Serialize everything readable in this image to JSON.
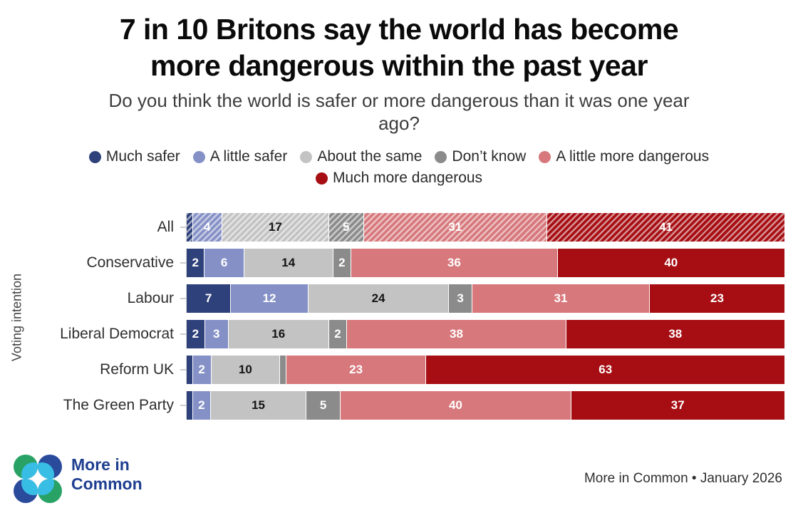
{
  "page": {
    "title_lines": [
      "7 in 10 Britons say the world has become",
      "more dangerous within the past year"
    ],
    "subtitle_lines": [
      "Do you think the world is safer or more dangerous than it was one year",
      "ago?"
    ]
  },
  "chart_data": {
    "type": "bar",
    "orientation": "horizontal",
    "stacked": true,
    "unit": "%",
    "xlim": [
      0,
      100
    ],
    "grid": false,
    "legend_position": "top",
    "ylabel": "Voting intention",
    "categories": [
      "All",
      "Conservative",
      "Labour",
      "Liberal Democrat",
      "Reform UK",
      "The Green Party"
    ],
    "series": [
      {
        "name": "Much safer",
        "color": "#2F417B",
        "values": [
          1,
          2,
          7,
          2,
          1,
          1
        ]
      },
      {
        "name": "A little safer",
        "color": "#8591C6",
        "values": [
          4,
          6,
          12,
          3,
          2,
          2
        ]
      },
      {
        "name": "About the same",
        "color": "#C3C3C3",
        "values": [
          17,
          14,
          24,
          16,
          10,
          15
        ]
      },
      {
        "name": "Don’t know",
        "color": "#8B8B8B",
        "values": [
          5,
          2,
          3,
          2,
          1,
          5
        ]
      },
      {
        "name": "A little more dangerous",
        "color": "#D7787C",
        "values": [
          31,
          36,
          31,
          38,
          23,
          40
        ]
      },
      {
        "name": "Much more dangerous",
        "color": "#A60E13",
        "values": [
          41,
          40,
          23,
          38,
          63,
          37
        ]
      }
    ],
    "hatched_categories": [
      "All"
    ],
    "value_label_min": 2,
    "value_label_dark_series": "About the same",
    "value_label_colors": {
      "light": "#ffffff",
      "dark": "#141414"
    }
  },
  "footer": {
    "logo_name": "more-in-common-logo",
    "logo_colors": {
      "green": "#29A266",
      "blue": "#2A4A9C",
      "cyan": "#38BDE5"
    },
    "wordmark_lines": [
      "More in",
      "Common"
    ],
    "attribution": "More in Common • January 2026"
  }
}
